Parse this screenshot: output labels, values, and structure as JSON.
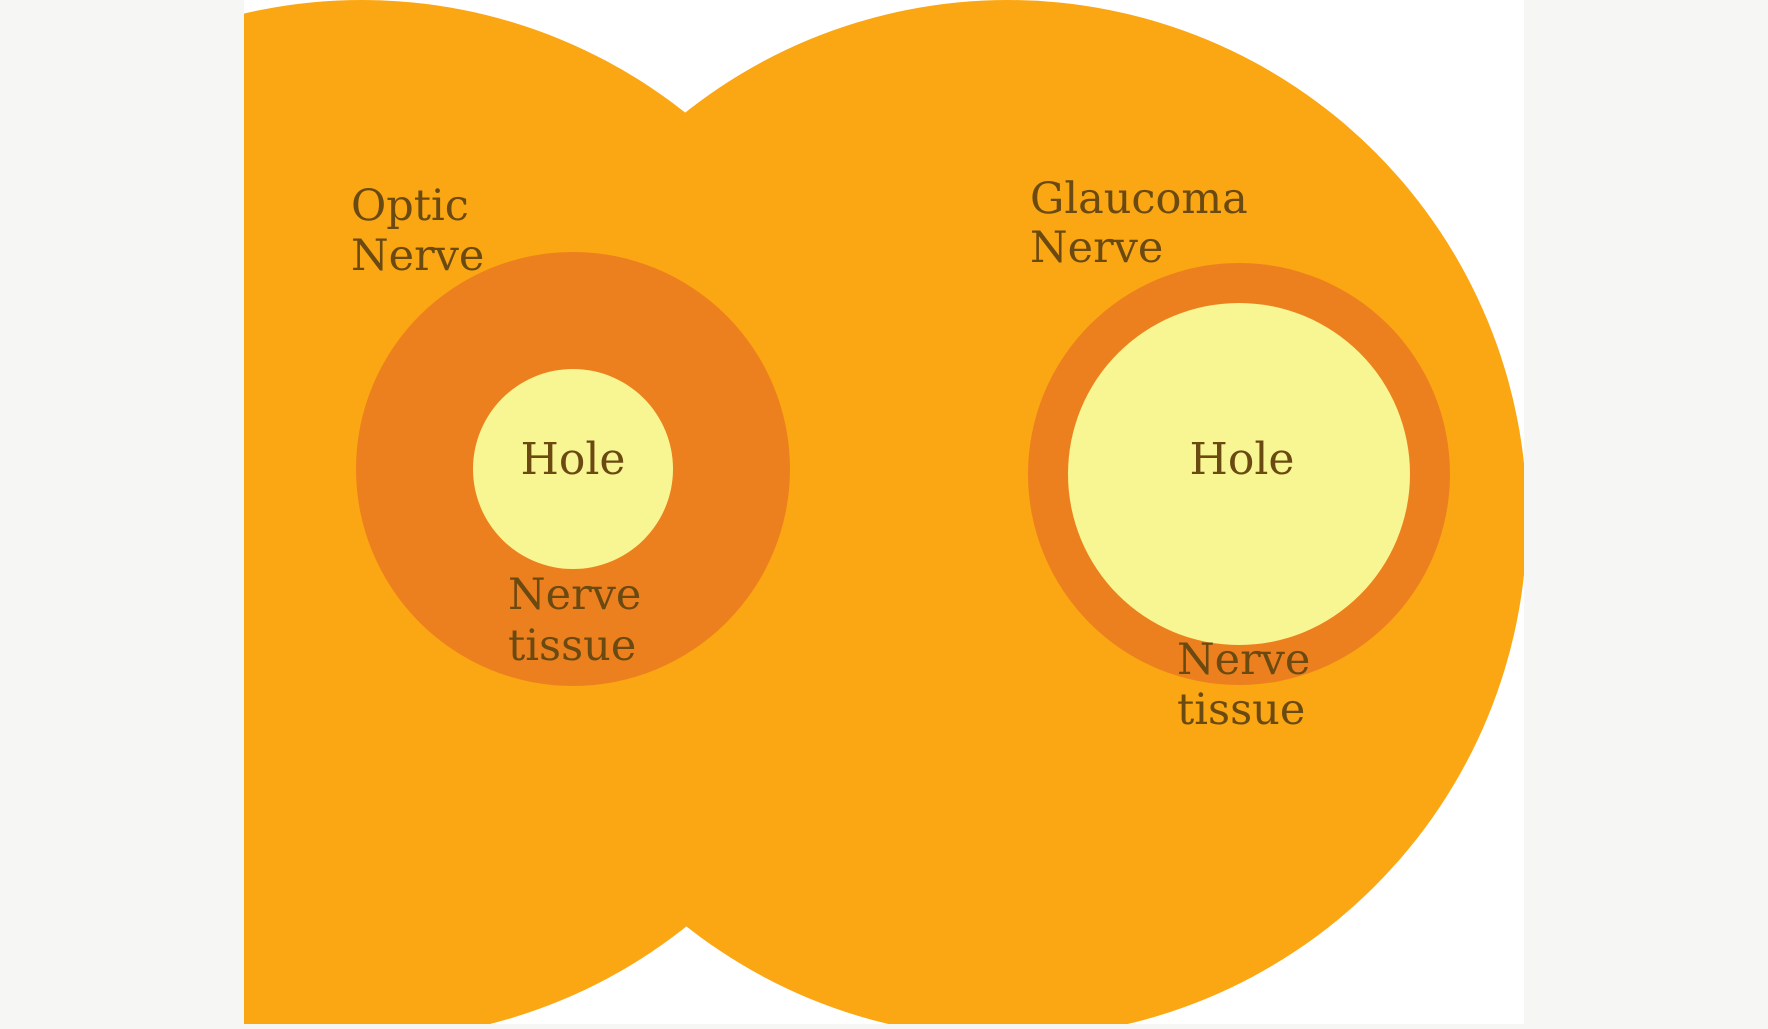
{
  "colors": {
    "page_background": "#f6f6f4",
    "panel_background": "#ffffff",
    "outer_disc": "#fba613",
    "nerve_tissue_ring": "#ed801e",
    "hole": "#f8f692",
    "label_text": "#6b4a12"
  },
  "left_diagram": {
    "title_line1": "Optic",
    "title_line2": "Nerve",
    "hole_label": "Hole",
    "tissue_line1": "Nerve",
    "tissue_line2": "tissue"
  },
  "right_diagram": {
    "title_line1": "Glaucoma",
    "title_line2": "Nerve",
    "hole_label": "Hole",
    "tissue_line1": "Nerve",
    "tissue_line2": "tissue"
  }
}
